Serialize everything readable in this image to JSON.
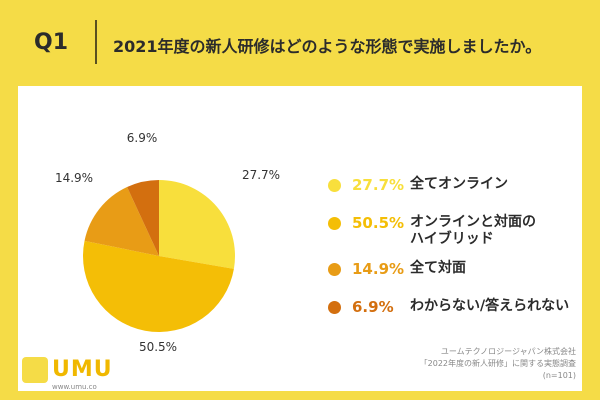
{
  "question": {
    "number": "Q1",
    "text": "2021年度の新人研修はどのような形態で実施しましたか。"
  },
  "chart_data": {
    "type": "pie",
    "slices": [
      {
        "label": "全てオンライン",
        "value": 27.7,
        "display": "27.7%",
        "color": "#F8DF3C"
      },
      {
        "label": "オンラインと対面の\nハイブリッド",
        "value": 50.5,
        "display": "50.5%",
        "color": "#F4BE06"
      },
      {
        "label": "全て対面",
        "value": 14.9,
        "display": "14.9%",
        "color": "#E89C16"
      },
      {
        "label": "わからない/答えられない",
        "value": 6.9,
        "display": "6.9%",
        "color": "#D36F0F"
      }
    ]
  },
  "logo": {
    "text": "UMU",
    "url": "www.umu.co"
  },
  "source": {
    "company": "ユームテクノロジージャパン株式会社",
    "survey": "「2022年度の新人研修」に関する実態調査",
    "sample": "(n=101)"
  }
}
